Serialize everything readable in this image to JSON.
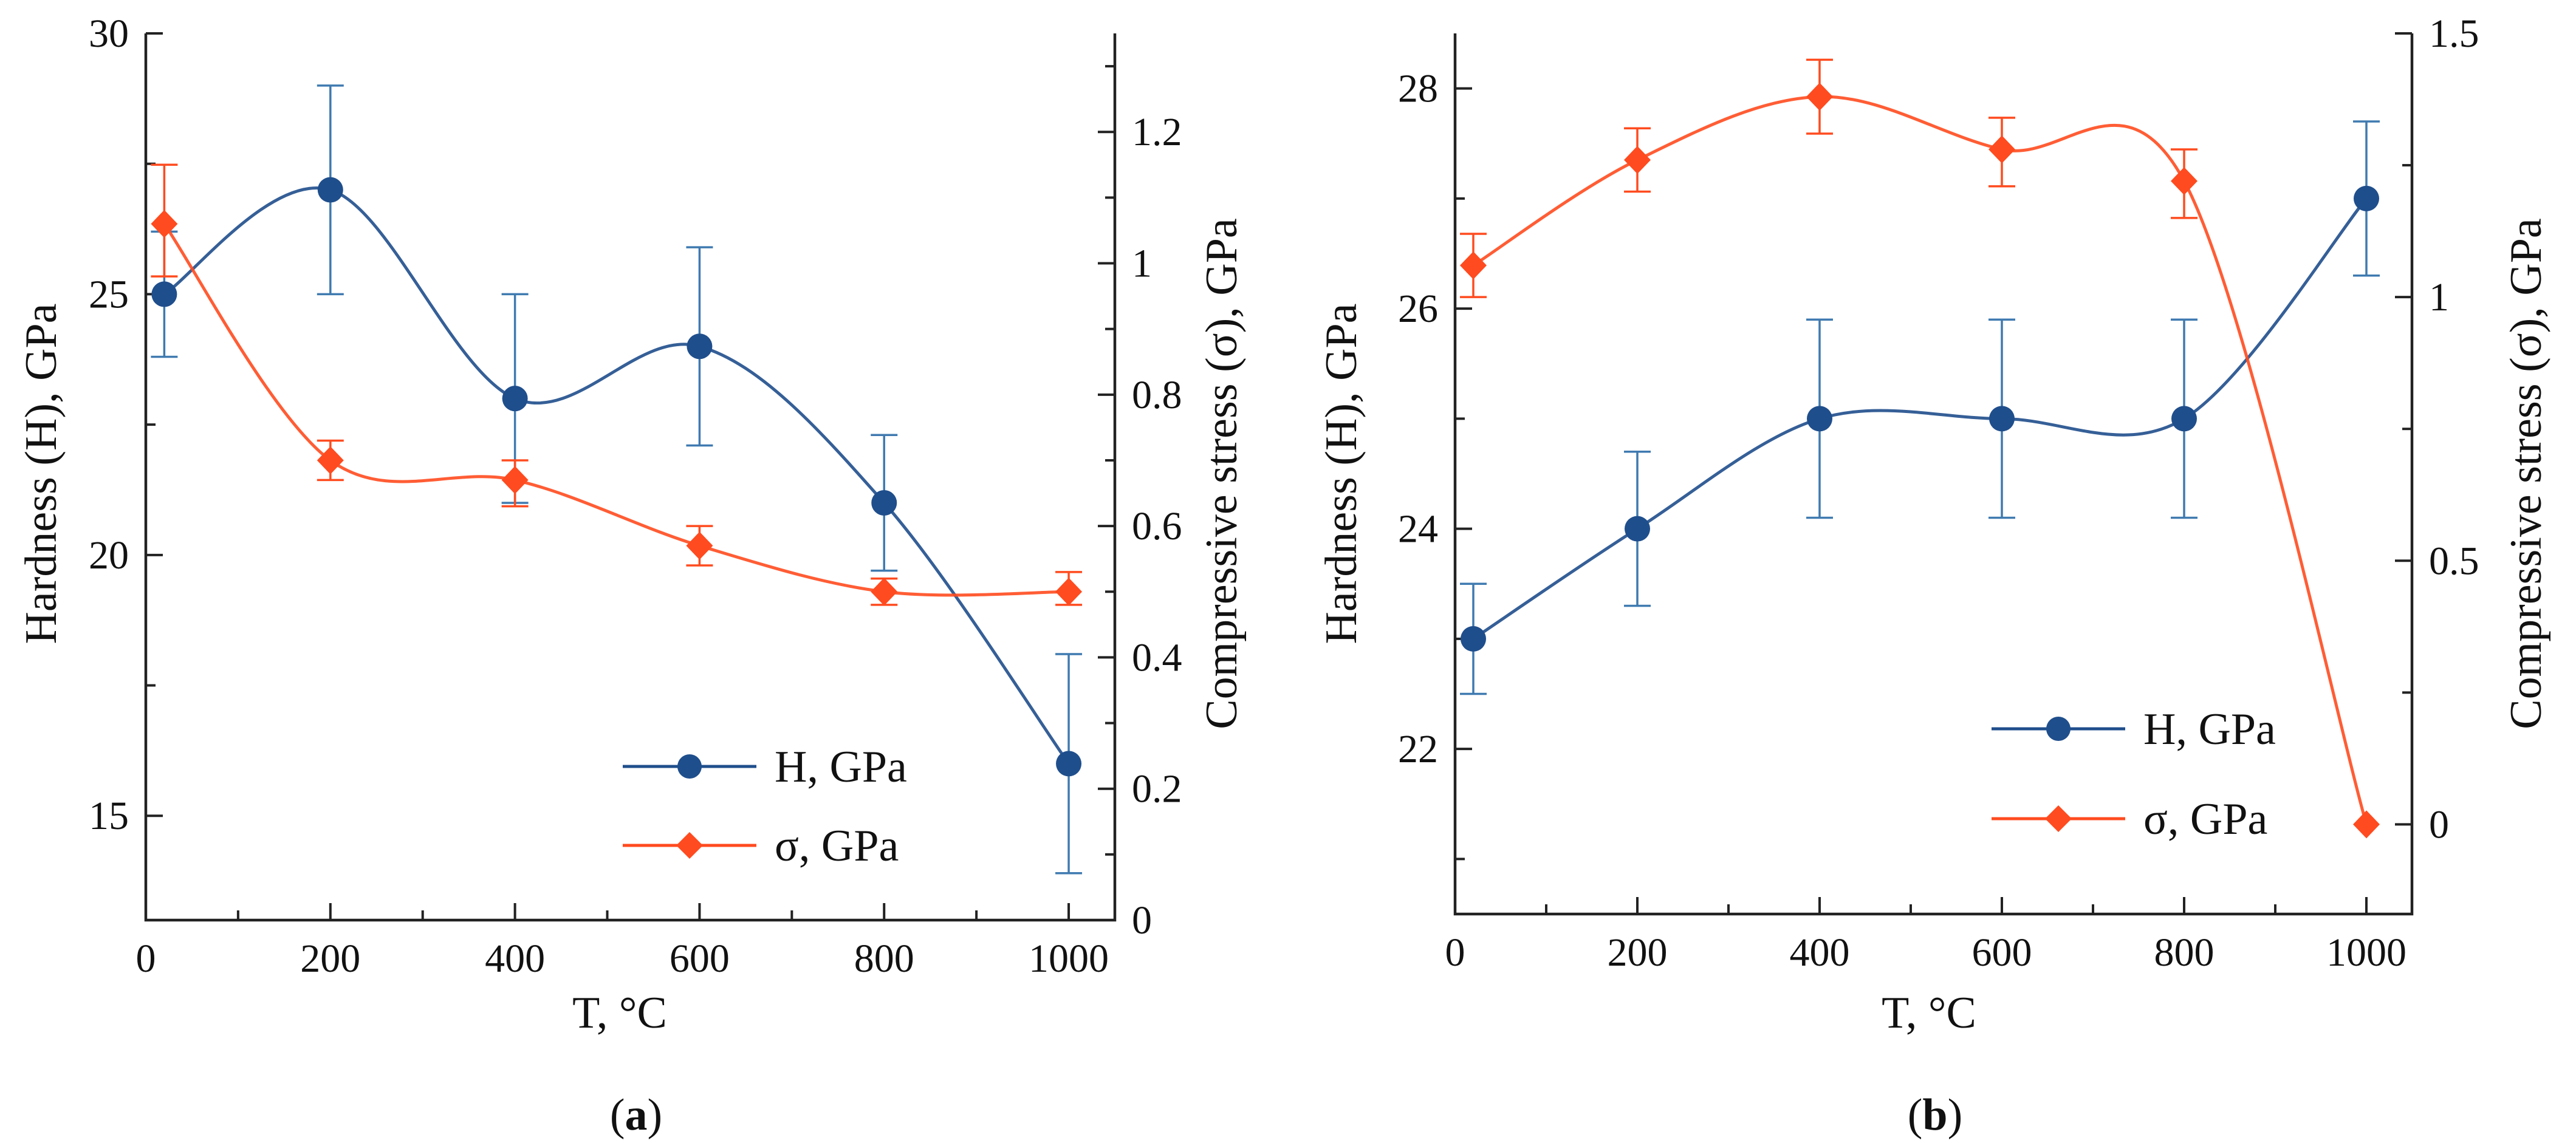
{
  "figure": {
    "panels": [
      "a",
      "b"
    ]
  },
  "chart_data": [
    {
      "panel_label": "a",
      "type": "line",
      "xlabel": "T, °C",
      "ylabel_left": "Hardness (H), GPa",
      "ylabel_right": "Compressive stress (σ), GPa",
      "xlim": [
        0,
        1050
      ],
      "ylim_left": [
        13,
        30
      ],
      "ylim_right": [
        0,
        1.35
      ],
      "x_ticks": [
        0,
        200,
        400,
        600,
        800,
        1000
      ],
      "y_left_ticks": [
        15,
        20,
        25,
        30
      ],
      "y_right_ticks": [
        0,
        0.2,
        0.4,
        0.6,
        0.8,
        1,
        1.2
      ],
      "y_right_tick_labels": [
        "0",
        "0.2",
        "0.4",
        "0.6",
        "0.8",
        "1",
        "1.2"
      ],
      "legend_position": "bottom-right",
      "series": [
        {
          "name": "H, GPa",
          "axis": "left",
          "color": "#1f4e8c",
          "marker": "circle",
          "x": [
            20,
            200,
            400,
            600,
            800,
            1000
          ],
          "y": [
            25,
            27,
            23,
            24,
            21,
            16
          ],
          "err_low": [
            23.8,
            25,
            21,
            22.1,
            19.7,
            13.9
          ],
          "err_high": [
            26.2,
            29,
            25,
            25.9,
            22.3,
            18.1
          ]
        },
        {
          "name": "σ, GPa",
          "axis": "right",
          "color": "#ff4b1f",
          "marker": "diamond",
          "x": [
            20,
            200,
            400,
            600,
            800,
            1000
          ],
          "y": [
            1.06,
            0.7,
            0.67,
            0.57,
            0.5,
            0.5
          ],
          "err_low": [
            0.98,
            0.67,
            0.63,
            0.54,
            0.48,
            0.48
          ],
          "err_high": [
            1.15,
            0.73,
            0.7,
            0.6,
            0.52,
            0.53
          ]
        }
      ]
    },
    {
      "panel_label": "b",
      "type": "line",
      "xlabel": "T, °C",
      "ylabel_left": "Hardness (H), GPa",
      "ylabel_right": "Compressive stress  (σ), GPa",
      "xlim": [
        0,
        1050
      ],
      "ylim_left": [
        20.5,
        28.5
      ],
      "ylim_right": [
        -0.17,
        1.5
      ],
      "x_ticks": [
        0,
        200,
        400,
        600,
        800,
        1000
      ],
      "y_left_ticks": [
        22,
        24,
        26,
        28
      ],
      "y_right_ticks": [
        0,
        0.5,
        1,
        1.5
      ],
      "y_right_tick_labels": [
        "0",
        "0.5",
        "1",
        "1.5"
      ],
      "legend_position": "bottom-right",
      "series": [
        {
          "name": "H, GPa",
          "axis": "left",
          "color": "#1f4e8c",
          "marker": "circle",
          "x": [
            20,
            200,
            400,
            600,
            800,
            1000
          ],
          "y": [
            23,
            24,
            25,
            25,
            25,
            27
          ],
          "err_low": [
            22.5,
            23.3,
            24.1,
            24.1,
            24.1,
            26.3
          ],
          "err_high": [
            23.5,
            24.7,
            25.9,
            25.9,
            25.9,
            27.7
          ]
        },
        {
          "name": "σ, GPa",
          "axis": "right",
          "color": "#ff4b1f",
          "marker": "diamond",
          "x": [
            20,
            200,
            400,
            600,
            800,
            1000
          ],
          "y": [
            1.06,
            1.26,
            1.38,
            1.28,
            1.22,
            0
          ],
          "err_low": [
            1.0,
            1.2,
            1.31,
            1.21,
            1.15,
            0
          ],
          "err_high": [
            1.12,
            1.32,
            1.45,
            1.34,
            1.28,
            0
          ]
        }
      ]
    }
  ]
}
